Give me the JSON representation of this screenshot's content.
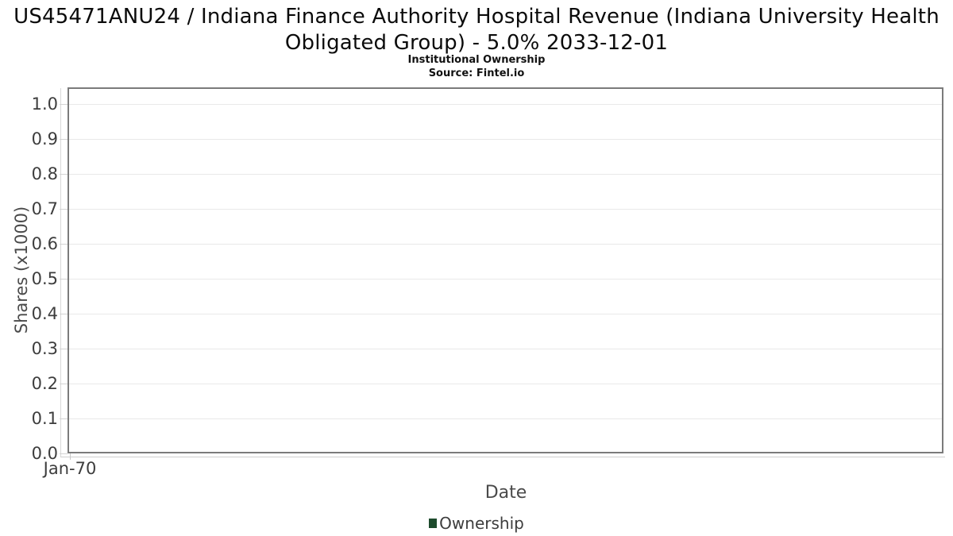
{
  "chart_data": {
    "type": "line",
    "title": "US45471ANU24 / Indiana Finance Authority Hospital Revenue (Indiana University Health Obligated Group) - 5.0% 2033-12-01",
    "subtitle": "Institutional Ownership",
    "source": "Source: Fintel.io",
    "xlabel": "Date",
    "ylabel": "Shares (x1000)",
    "x_tick_labels": [
      "Jan-70"
    ],
    "y_tick_labels": [
      "0.0",
      "0.1",
      "0.2",
      "0.3",
      "0.4",
      "0.5",
      "0.6",
      "0.7",
      "0.8",
      "0.9",
      "1.0"
    ],
    "ylim": [
      0.0,
      1.045
    ],
    "grid": "horizontal",
    "legend_position": "bottom",
    "legend": [
      {
        "name": "Ownership",
        "color": "#1d4b2c"
      }
    ],
    "series": [
      {
        "name": "Ownership",
        "x": [],
        "values": []
      }
    ]
  },
  "colors": {
    "background": "#ffffff",
    "plot_border": "#7b7b7b",
    "gridline": "#e9e9e9",
    "axis_line": "#d4d4d4",
    "tick_text": "#3d3d3d",
    "axis_label_text": "#4a4a4a",
    "title_text": "#0b0b0b",
    "legend_marker": "#1d4b2c"
  }
}
